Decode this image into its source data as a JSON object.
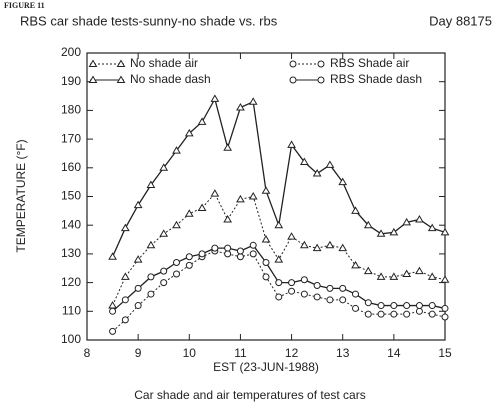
{
  "chart_data": {
    "type": "line",
    "figure_label": "FIGURE 11",
    "title": "RBS car shade tests-sunny-no shade vs. rbs",
    "subtitle": "Day 88175",
    "x_label": "EST (23-JUN-1988)",
    "y_label": "TEMPERATURE (°F)",
    "caption": "Car shade and air temperatures of test cars",
    "x": [
      8.5,
      8.75,
      9,
      9.25,
      9.5,
      9.75,
      10,
      10.25,
      10.5,
      10.75,
      11,
      11.25,
      11.5,
      11.75,
      12,
      12.25,
      12.5,
      12.75,
      13,
      13.25,
      13.5,
      13.75,
      14,
      14.25,
      14.5,
      14.75,
      15
    ],
    "xlim": [
      8,
      15
    ],
    "xticks": [
      8,
      9,
      10,
      11,
      12,
      13,
      14,
      15
    ],
    "ylim": [
      100,
      200
    ],
    "yticks": [
      100,
      110,
      120,
      130,
      140,
      150,
      160,
      170,
      180,
      190,
      200
    ],
    "series": [
      {
        "name": "No shade air",
        "color": "#222222",
        "marker": "triangle",
        "dashed": true,
        "values": [
          112,
          122,
          128,
          133,
          137,
          140,
          144,
          146,
          151,
          142,
          149,
          150,
          135,
          128,
          136,
          133,
          132,
          133,
          132,
          126,
          124,
          122,
          122,
          123,
          124,
          122,
          121
        ]
      },
      {
        "name": "No shade dash",
        "color": "#222222",
        "marker": "triangle",
        "dashed": false,
        "values": [
          129,
          139,
          147,
          154,
          160,
          166,
          172,
          176,
          184,
          167,
          181,
          183,
          152,
          140,
          168,
          162,
          158,
          161,
          155,
          145,
          140,
          137,
          137.5,
          141,
          142,
          139,
          137.5
        ]
      },
      {
        "name": "RBS Shade air",
        "color": "#222222",
        "marker": "circle",
        "dashed": true,
        "values": [
          103,
          107,
          112,
          116,
          120,
          123,
          126,
          129,
          131,
          130,
          129,
          130,
          122,
          115,
          117,
          116,
          115,
          114,
          114,
          111,
          109,
          109,
          109,
          109,
          110,
          109,
          108
        ]
      },
      {
        "name": "RBS Shade dash",
        "color": "#222222",
        "marker": "circle",
        "dashed": false,
        "values": [
          110,
          114,
          118,
          122,
          124,
          127,
          129,
          130,
          132,
          132,
          131,
          133,
          127,
          120,
          120,
          121,
          119,
          118,
          118,
          116,
          113,
          112,
          112,
          112,
          112,
          112,
          111
        ]
      }
    ]
  }
}
